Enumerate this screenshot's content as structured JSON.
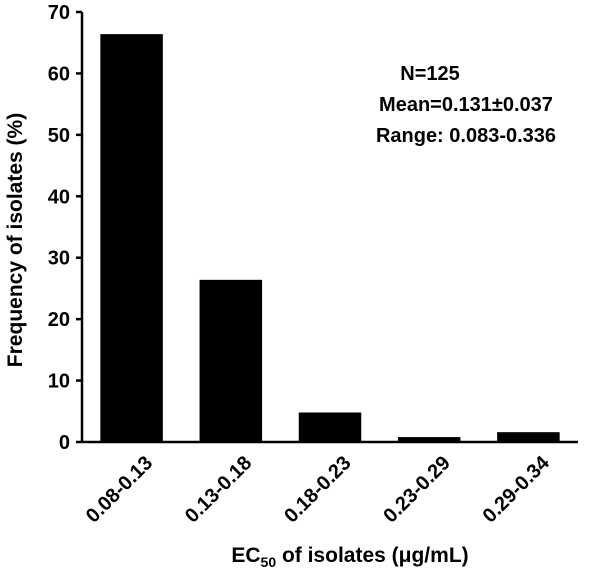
{
  "chart_data": {
    "type": "bar",
    "categories": [
      "0.08-0.13",
      "0.13-0.18",
      "0.18-0.23",
      "0.23-0.29",
      "0.29-0.34"
    ],
    "values": [
      66.4,
      26.4,
      4.8,
      0.8,
      1.6
    ],
    "ylim": [
      0,
      70
    ],
    "yticks": [
      0,
      10,
      20,
      30,
      40,
      50,
      60,
      70
    ],
    "ylabel": "Frequency of isolates (%)",
    "xlabel_prefix": "EC",
    "xlabel_subscript": "50",
    "xlabel_suffix": " of isolates (μg/mL)",
    "annotations": [
      "N=125",
      "Mean=0.131±0.037",
      "Range: 0.083-0.336"
    ],
    "bar_color": "#000000",
    "grid": false
  }
}
